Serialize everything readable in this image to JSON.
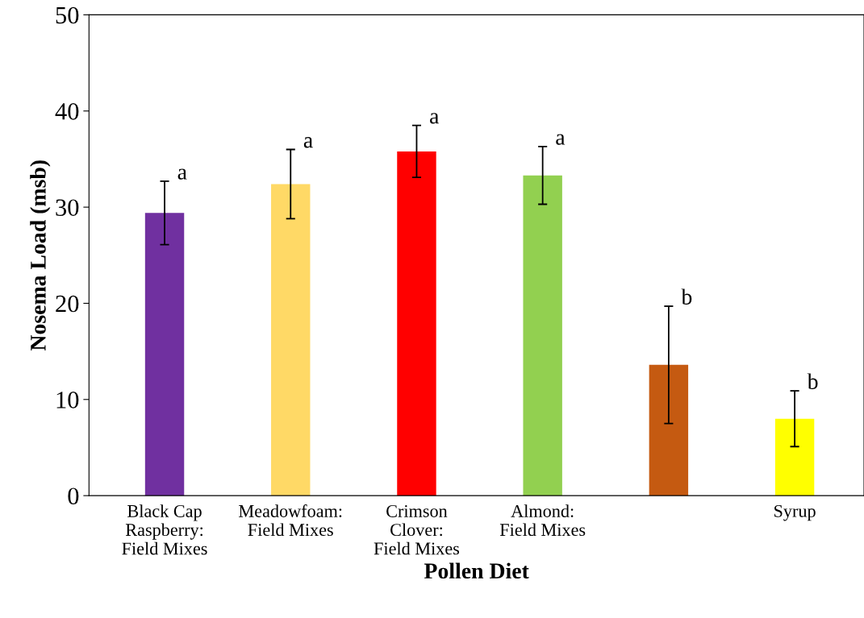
{
  "chart_data": {
    "type": "bar",
    "xlabel": "Pollen Diet",
    "ylabel": "Nosema Load (msb)",
    "categories": [
      "Black Cap Raspberry: Field Mixes",
      "Meadowfoam: Field Mixes",
      "Crimson Clover: Field Mixes",
      "Almond: Field Mixes",
      null,
      "Syrup"
    ],
    "values": [
      29.4,
      32.4,
      35.8,
      33.3,
      13.6,
      8.0
    ],
    "errors": [
      3.3,
      3.6,
      2.7,
      3.0,
      6.1,
      2.9
    ],
    "colors": [
      "#7030a0",
      "#ffd966",
      "#ff0000",
      "#92d050",
      "#c55a11",
      "#ffff00"
    ],
    "annotations": [
      "a",
      "a",
      "a",
      "a",
      "b",
      "b"
    ],
    "ylim": [
      0,
      50
    ],
    "yticks": [
      0,
      10,
      20,
      30,
      40,
      50
    ],
    "grid": false
  }
}
